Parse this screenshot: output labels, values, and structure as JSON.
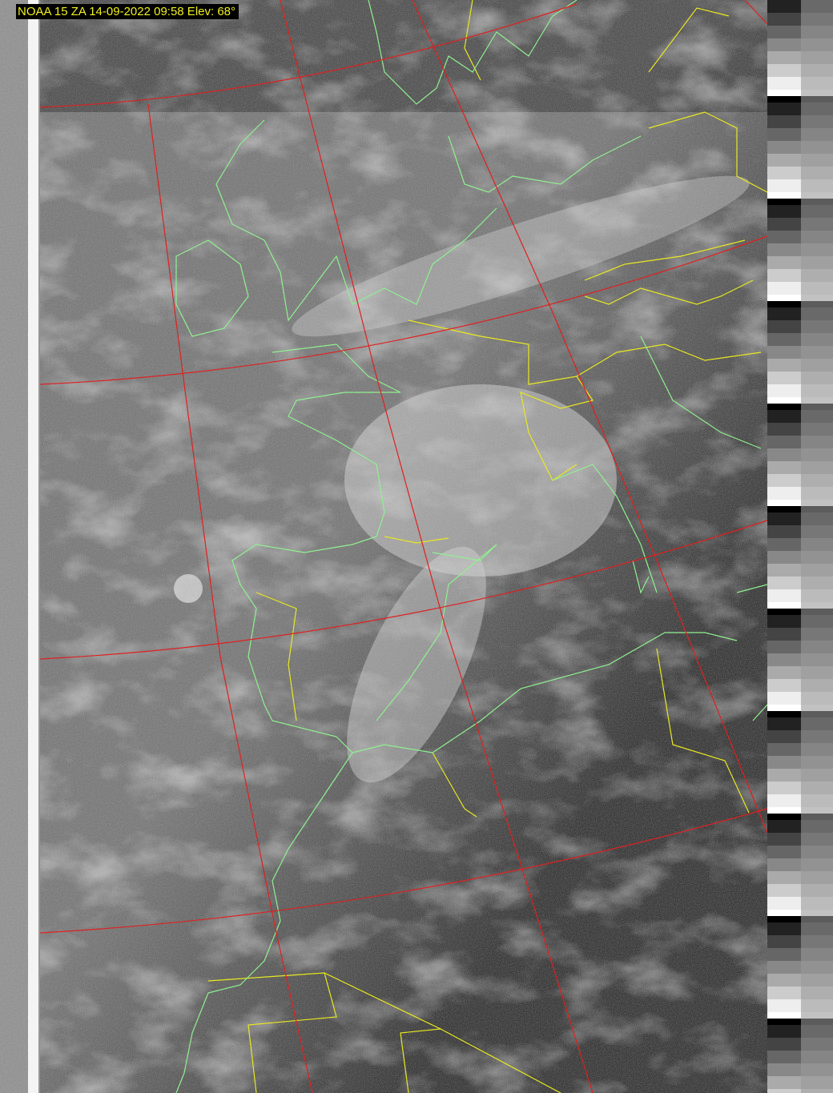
{
  "header": {
    "title": "NOAA 15 ZA 14-09-2022 09:58 Elev: 68°"
  },
  "colors": {
    "graticule": "#e02020",
    "coastline": "#90f090",
    "borders": "#e8e820",
    "title_text": "#f0f020",
    "title_background": "#000000"
  }
}
